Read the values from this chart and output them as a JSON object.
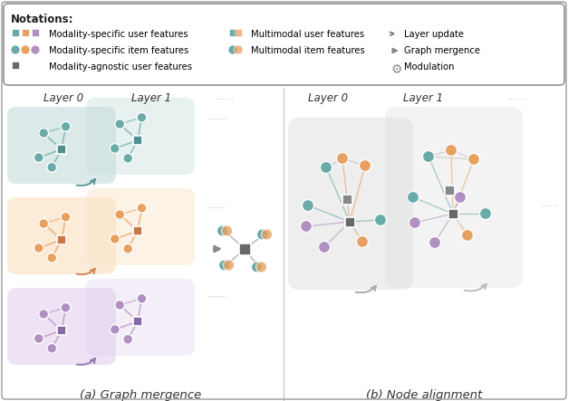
{
  "fig_width": 6.27,
  "fig_height": 4.43,
  "dpi": 100,
  "bg_color": "#ffffff",
  "teal_color": "#6aabaa",
  "orange_color": "#e8a060",
  "purple_color": "#b090c0",
  "teal_bg": "#c8dedd",
  "orange_bg": "#fce4c8",
  "purple_bg": "#e0d0ee",
  "gray_bg": "#e0e0e0",
  "node_border": "#ffffff",
  "sq_teal": "#4e9090",
  "sq_orange": "#cc7845",
  "sq_purple": "#8868a8",
  "sq_gray": "#686868",
  "sq_gray2": "#888888",
  "edge_color": "#aaaaaa",
  "arrow_gray": "#888888",
  "teal_arrow": "#5a9898",
  "orange_arrow": "#d08850",
  "purple_arrow": "#9878b0",
  "label_a": "(a) Graph mergence",
  "label_b": "(b) Node alignment",
  "layer0": "Layer 0",
  "layer1": "Layer 1",
  "dots_text": "......",
  "dots_text2": ".......",
  "note_title": "Notations:",
  "legend_row1_text": "Modality-specific user features",
  "legend_row2_text": "Modality-specific item features",
  "legend_row3_text": "Modality-agnostic user features",
  "legend_col2_row1_text": "Multimodal user features",
  "legend_col2_row2_text": "Multimodal item features",
  "legend_col3_row1_text": "Layer update",
  "legend_col3_row2_text": "Graph mergence",
  "legend_col3_row3_text": "Modulation"
}
